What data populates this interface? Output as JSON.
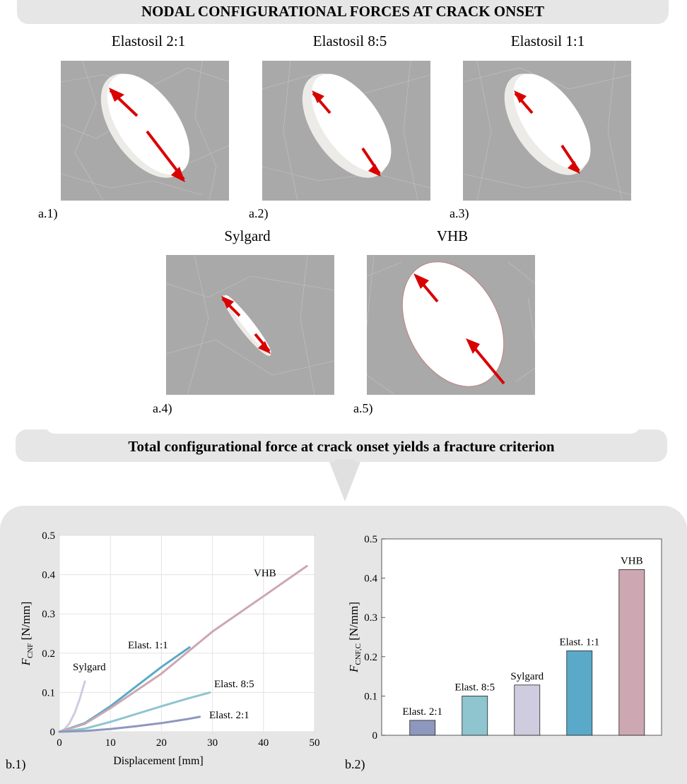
{
  "header": {
    "title": "NODAL CONFIGURATIONAL FORCES AT CRACK ONSET"
  },
  "panels": [
    {
      "title": "Elastosil 2:1",
      "tag": "a.1)"
    },
    {
      "title": "Elastosil 8:5",
      "tag": "a.2)"
    },
    {
      "title": "Elastosil 1:1",
      "tag": "a.3)"
    },
    {
      "title": "Sylgard",
      "tag": "a.4)"
    },
    {
      "title": "VHB",
      "tag": "a.5)"
    }
  ],
  "middle_banner": {
    "text": "Total configurational force at crack onset yields a fracture criterion"
  },
  "colors": {
    "mesh_background": "#a9a9a9",
    "arrow_red": "#d90000",
    "elast21": "#8e97bd",
    "elast85": "#8ec5cf",
    "elast11": "#5aa9c9",
    "sylgard": "#cfcce0",
    "vhb": "#cda7b1"
  },
  "chart_data": [
    {
      "type": "line",
      "tag": "b.1)",
      "xlabel": "Displacement [mm]",
      "ylabel_main": "F",
      "ylabel_sub": "CNF",
      "ylabel_unit": " [N/mm]",
      "xlim": [
        0,
        50
      ],
      "ylim": [
        0,
        0.5
      ],
      "xticks": [
        "0",
        "10",
        "20",
        "30",
        "40",
        "50"
      ],
      "yticks": [
        "0",
        "0.1",
        "0.2",
        "0.3",
        "0.4",
        "0.5"
      ],
      "grid": true,
      "series": [
        {
          "name": "Sylgard",
          "color": "#cfcce0",
          "x": [
            0,
            1,
            2,
            3,
            4,
            5
          ],
          "y": [
            0,
            0.006,
            0.022,
            0.048,
            0.084,
            0.128
          ]
        },
        {
          "name": "Elast. 1:1",
          "color": "#5aa9c9",
          "x": [
            0,
            5,
            10,
            15,
            20,
            25.5
          ],
          "y": [
            0,
            0.022,
            0.065,
            0.115,
            0.165,
            0.215
          ]
        },
        {
          "name": "VHB",
          "color": "#cda7b1",
          "x": [
            0,
            5,
            10,
            20,
            30,
            40,
            48.5
          ],
          "y": [
            0,
            0.02,
            0.06,
            0.148,
            0.255,
            0.345,
            0.422
          ]
        },
        {
          "name": "Elast. 8:5",
          "color": "#8ec5cf",
          "x": [
            0,
            5,
            10,
            15,
            20,
            25,
            29.5
          ],
          "y": [
            0,
            0.008,
            0.025,
            0.045,
            0.065,
            0.084,
            0.1
          ]
        },
        {
          "name": "Elast. 2:1",
          "color": "#8e97bd",
          "x": [
            0,
            5,
            10,
            15,
            20,
            25,
            27.5
          ],
          "y": [
            0,
            0.002,
            0.007,
            0.014,
            0.022,
            0.032,
            0.038
          ]
        }
      ],
      "labels": [
        "Sylgard",
        "Elast. 1:1",
        "VHB",
        "Elast. 8:5",
        "Elast. 2:1"
      ]
    },
    {
      "type": "bar",
      "tag": "b.2)",
      "ylabel_main": "F",
      "ylabel_sub": "CNF,C",
      "ylabel_unit": " [N/mm]",
      "ylim": [
        0,
        0.5
      ],
      "yticks": [
        "0",
        "0.1",
        "0.2",
        "0.3",
        "0.4",
        "0.5"
      ],
      "categories": [
        "Elast. 2:1",
        "Elast. 8:5",
        "Sylgard",
        "Elast. 1:1",
        "VHB"
      ],
      "values": [
        0.038,
        0.1,
        0.128,
        0.215,
        0.422
      ],
      "colors": [
        "#8e97bd",
        "#8ec5cf",
        "#cfcce0",
        "#5aa9c9",
        "#cda7b1"
      ]
    }
  ]
}
